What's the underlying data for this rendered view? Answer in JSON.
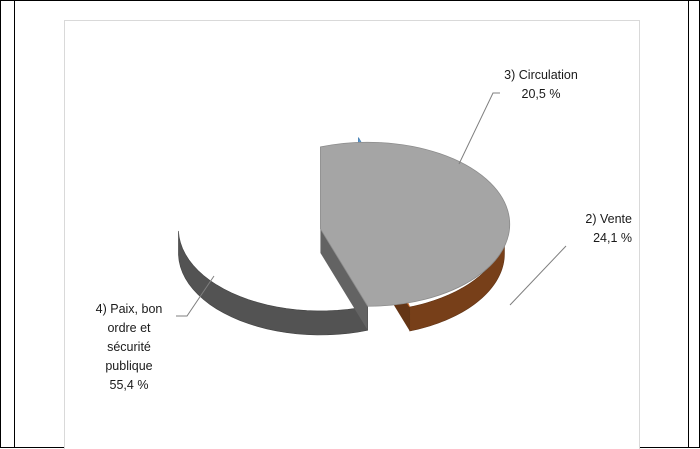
{
  "chart_data": {
    "type": "pie",
    "title": "",
    "slices": [
      {
        "label": "3) Circulation",
        "value_label": "20,5 %",
        "value": 20.5,
        "color": "#5b9bd5"
      },
      {
        "label": "2) Vente",
        "value_label": "24,1 %",
        "value": 24.1,
        "color": "#ed7d31"
      },
      {
        "label": "4) Paix, bon ordre et sécurité publique",
        "value_label": "55,4 %",
        "value": 55.4,
        "color": "#a5a5a5"
      }
    ],
    "exploded": true,
    "style": "3d"
  },
  "labels": {
    "circulation_line1": "3) Circulation",
    "circulation_line2": "20,5 %",
    "vente_line1": "2) Vente",
    "vente_line2": "24,1 %",
    "paix_line1": "4) Paix,  bon",
    "paix_line2": "ordre  et",
    "paix_line3": "sécurité",
    "paix_line4": "publique",
    "paix_line5": "55,4 %"
  }
}
